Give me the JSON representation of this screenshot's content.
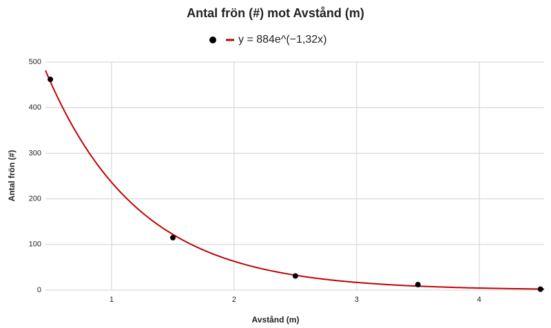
{
  "chart_data": {
    "type": "scatter",
    "title": "Antal frön (#) mot Avstånd (m)",
    "x_label": "Avstånd (m)",
    "y_label": "Antal frön (#)",
    "series": [
      {
        "color": "#000000",
        "x": [
          0.5,
          1.5,
          2.5,
          3.5,
          4.5
        ],
        "values": [
          462,
          115,
          31,
          12,
          2
        ]
      }
    ],
    "trendline": {
      "label": "y = 884e^(−1,32x)",
      "a": 884,
      "b": -1.32,
      "color": "#c00000"
    },
    "xlim": [
      0.46,
      4.53
    ],
    "ylim": [
      0,
      500
    ],
    "xticks": [
      1,
      2,
      3,
      4
    ],
    "yticks": [
      0,
      100,
      200,
      300,
      400,
      500
    ],
    "grid": true
  }
}
